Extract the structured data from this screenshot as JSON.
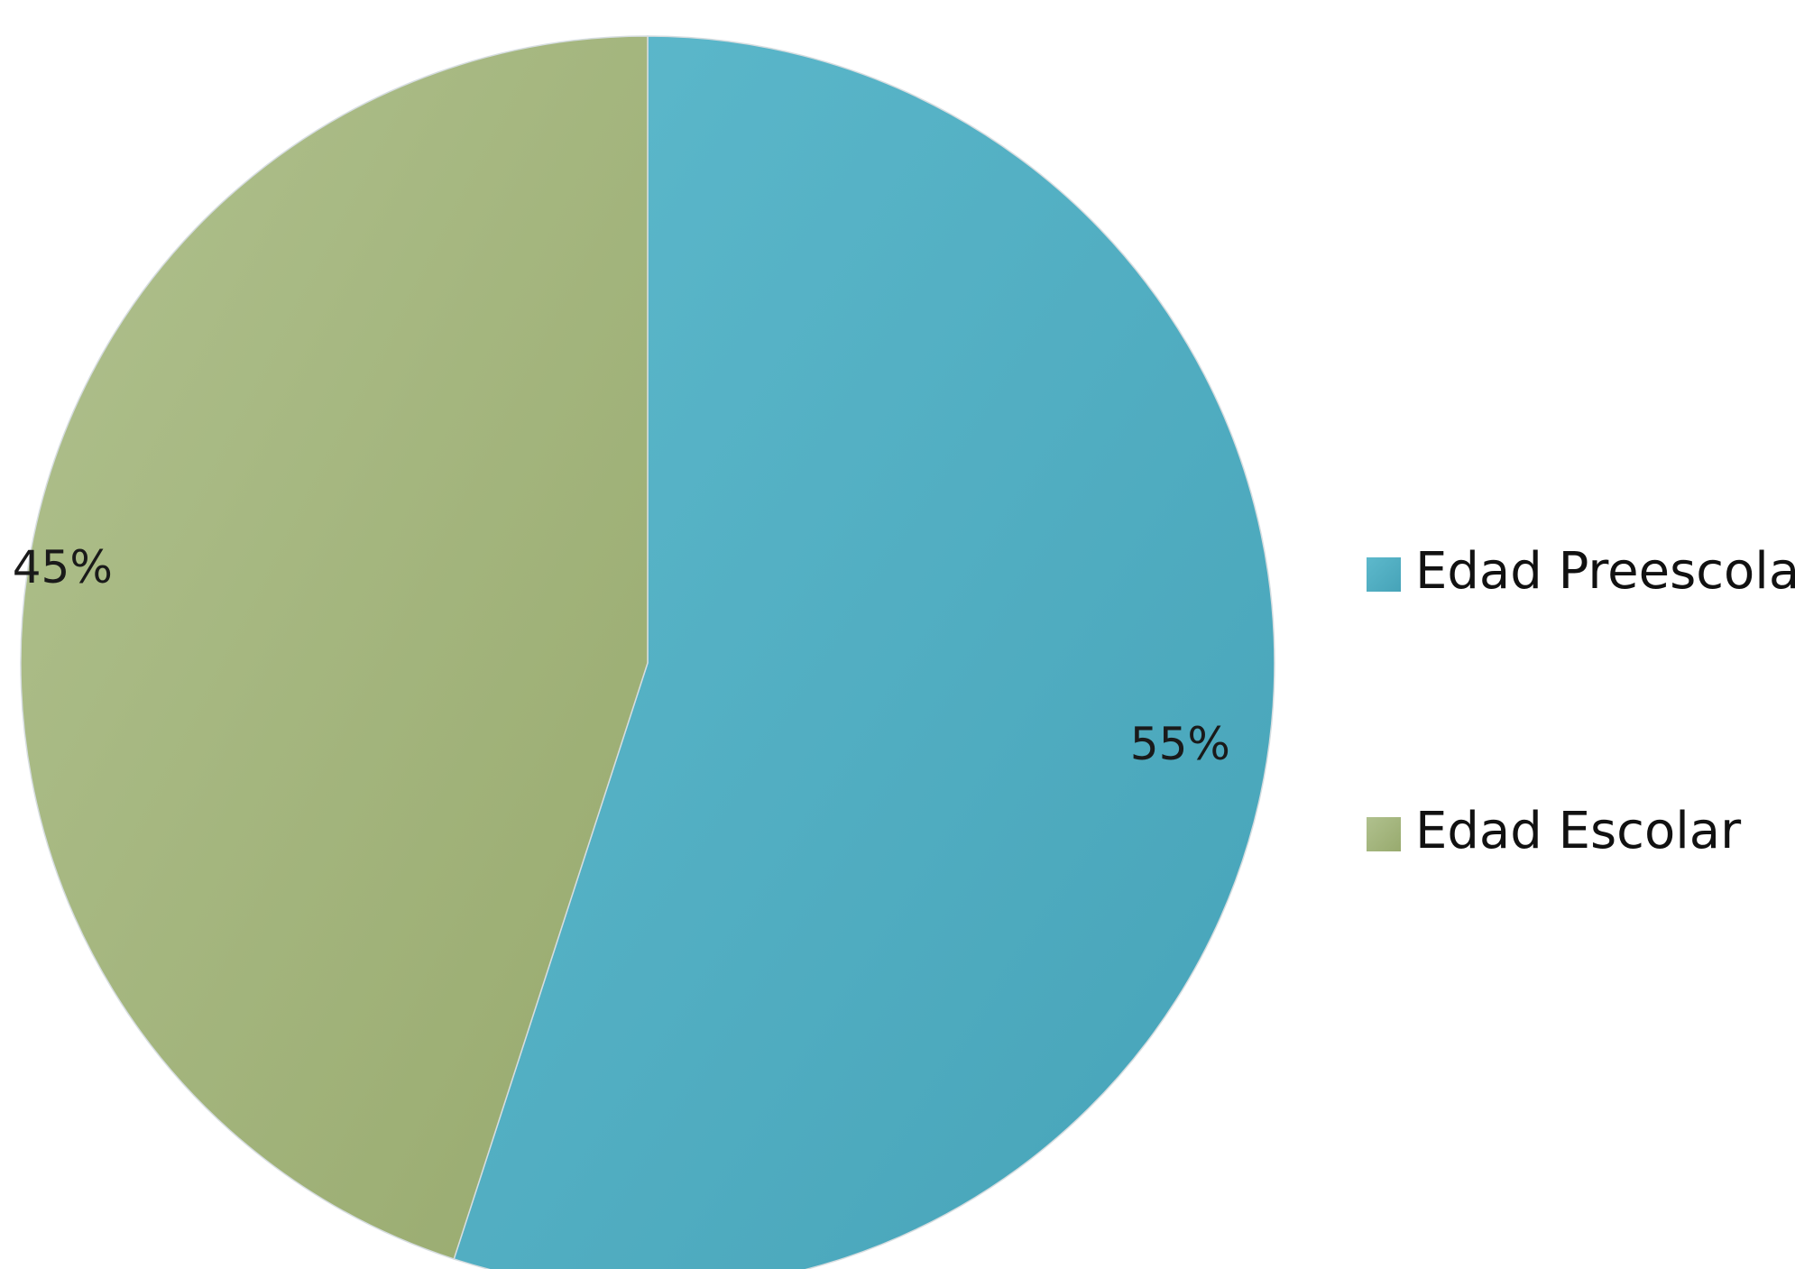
{
  "chart_data": {
    "type": "pie",
    "categories": [
      "Edad Preescolar",
      "Edad Escolar"
    ],
    "values": [
      55,
      45
    ],
    "data_labels": [
      "55%",
      "45%"
    ],
    "colors": [
      "#4fb0c6",
      "#a6b87c"
    ],
    "legend_position": "right",
    "start_angle": "top, clockwise"
  }
}
